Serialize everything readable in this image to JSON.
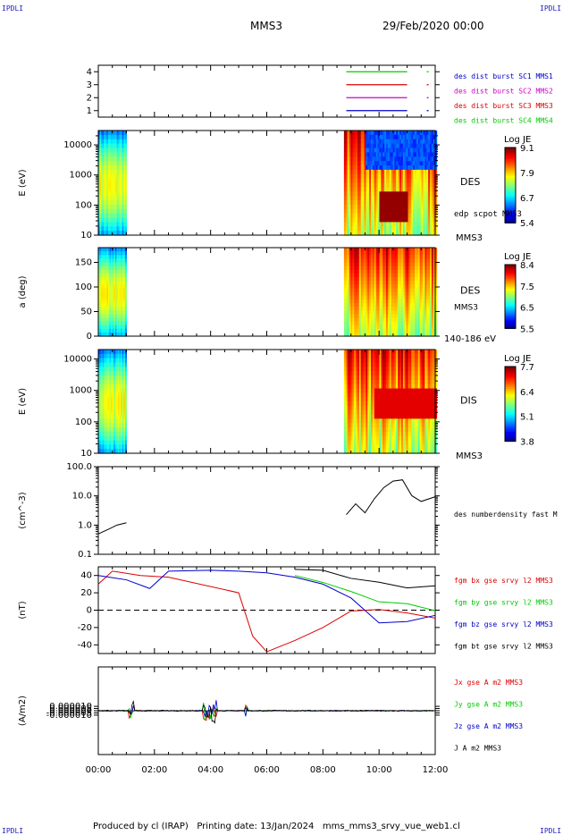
{
  "header": {
    "corner_label": "IPDLI",
    "spacecraft": "MMS3",
    "date": "29/Feb/2020 00:00"
  },
  "footer": {
    "text": "Produced by cl (IRAP)   Printing date: 13/Jan/2024   mms_mms3_srvy_vue_web1.cl"
  },
  "colors": {
    "sc1": "#0000cc",
    "sc2": "#cc00cc",
    "sc3": "#dd0000",
    "sc4": "#00cc00",
    "bx": "#dd0000",
    "by": "#00cc00",
    "bz": "#0000cc",
    "bt": "#000000"
  },
  "chart_data": [
    {
      "type": "line",
      "panel": "burst",
      "ylim": [
        0.5,
        4.5
      ],
      "yticks": [
        "1",
        "2",
        "3",
        "4"
      ],
      "series": [
        {
          "name": "des dist burst SC1 MMS1",
          "level": 1,
          "x": [
            [
              "08:50",
              "11:00"
            ]
          ]
        },
        {
          "name": "des dist burst SC2 MMS2",
          "level": 2,
          "x": [
            [
              "08:50",
              "11:00"
            ]
          ]
        },
        {
          "name": "des dist burst SC3 MMS3",
          "level": 3,
          "x": [
            [
              "08:50",
              "11:00"
            ]
          ]
        },
        {
          "name": "des dist burst SC4 MMS4",
          "level": 4,
          "x": [
            [
              "08:50",
              "11:00"
            ]
          ]
        }
      ]
    },
    {
      "type": "heatmap",
      "panel": "des_energy",
      "log_y": true,
      "ylabel": "E (eV)",
      "ylim": [
        10,
        30000
      ],
      "yticks": [
        "10",
        "100",
        "1000",
        "10000"
      ],
      "label": "DES",
      "sublabel": "edp scpot MMS3",
      "bottom_label": "MMS3",
      "colorbar": {
        "title": "Log JE",
        "ticks": [
          "9.1",
          "7.9",
          "6.7",
          "5.4"
        ]
      },
      "data_intervals": [
        [
          "00:00",
          "01:00"
        ],
        [
          "08:45",
          "12:00"
        ]
      ],
      "enhanced_interval": [
        "10:00",
        "11:00"
      ]
    },
    {
      "type": "heatmap",
      "panel": "des_pitch",
      "ylabel": "a (deg)",
      "ylim": [
        0,
        180
      ],
      "yticks": [
        "0",
        "50",
        "100",
        "150"
      ],
      "label": "DES",
      "sublabel": "MMS3",
      "bottom_label": "140-186 eV",
      "colorbar": {
        "title": "Log JE",
        "ticks": [
          "8.4",
          "7.5",
          "6.5",
          "5.5"
        ]
      },
      "data_intervals": [
        [
          "00:00",
          "01:00"
        ],
        [
          "08:45",
          "12:00"
        ]
      ]
    },
    {
      "type": "heatmap",
      "panel": "dis_energy",
      "log_y": true,
      "ylabel": "E (eV)",
      "ylim": [
        10,
        20000
      ],
      "yticks": [
        "10",
        "100",
        "1000",
        "10000"
      ],
      "label": "DIS",
      "bottom_label": "MMS3",
      "colorbar": {
        "title": "Log JE",
        "ticks": [
          "7.7",
          "6.4",
          "5.1",
          "3.8"
        ]
      },
      "data_intervals": [
        [
          "00:00",
          "01:00"
        ],
        [
          "08:45",
          "12:00"
        ]
      ]
    },
    {
      "type": "line",
      "panel": "density",
      "log_y": true,
      "ylabel": "(cm^-3)",
      "ylim": [
        0.1,
        100
      ],
      "yticks": [
        "0.1",
        "1.0",
        "10.0",
        "100.0"
      ],
      "series": [
        {
          "name": "des numberdensity fast M",
          "color": "#000000",
          "x": [
            "00:00",
            "00:20",
            "00:40",
            "01:00",
            "08:50",
            "09:10",
            "09:30",
            "09:50",
            "10:10",
            "10:30",
            "10:50",
            "11:10",
            "11:30",
            "12:00"
          ],
          "y": [
            0.5,
            0.7,
            1.0,
            1.2,
            2.0,
            5.0,
            3.0,
            8.0,
            20,
            30,
            40,
            15,
            10,
            9
          ]
        }
      ]
    },
    {
      "type": "line",
      "panel": "fgm",
      "ylabel": "(nT)",
      "ylim": [
        -50,
        50
      ],
      "yticks": [
        "-40",
        "-20",
        "0",
        "20",
        "40"
      ],
      "series": [
        {
          "name": "fgm bx gse srvy l2 MMS3",
          "color": "#dd0000",
          "x": [
            "00:00",
            "00:30",
            "01:30",
            "02:30",
            "05:00",
            "05:30",
            "06:00",
            "07:00",
            "08:00",
            "09:00",
            "10:00",
            "11:00",
            "12:00"
          ],
          "y": [
            30,
            45,
            40,
            38,
            20,
            -30,
            -48,
            -35,
            -20,
            -5,
            -5,
            -5,
            -8
          ]
        },
        {
          "name": "fgm by gse srvy l2 MMS3",
          "color": "#00cc00",
          "x": [
            "07:00",
            "08:00",
            "09:00",
            "10:00",
            "11:00",
            "12:00"
          ],
          "y": [
            40,
            32,
            20,
            15,
            10,
            5
          ]
        },
        {
          "name": "fgm bz gse srvy l2 MMS3",
          "color": "#0000cc",
          "x": [
            "00:00",
            "01:00",
            "01:50",
            "02:30",
            "04:00",
            "05:00",
            "06:00",
            "07:00",
            "08:00",
            "09:00",
            "10:00",
            "11:00",
            "12:00"
          ],
          "y": [
            40,
            35,
            25,
            45,
            46,
            45,
            43,
            38,
            30,
            10,
            -10,
            -10,
            -8
          ]
        },
        {
          "name": "fgm bt gse srvy l2 MMS3",
          "color": "#000000",
          "x": [
            "07:00",
            "08:00",
            "09:00",
            "10:00",
            "11:00",
            "12:00"
          ],
          "y": [
            47,
            46,
            40,
            35,
            30,
            25
          ]
        }
      ]
    },
    {
      "type": "line",
      "panel": "current",
      "ylabel": "(A/m2)",
      "ylim": [
        -0.0001,
        0.0001
      ],
      "yticks": [
        "-0.000010",
        "-0.000005",
        "0.000000",
        "0.000005",
        "0.000010"
      ],
      "series": [
        {
          "name": "Jx gse A m2 MMS3",
          "color": "#dd0000"
        },
        {
          "name": "Jy gse A m2 MMS3",
          "color": "#00cc00"
        },
        {
          "name": "Jz gse A m2 MMS3",
          "color": "#0000cc"
        },
        {
          "name": "J A m2 MMS3",
          "color": "#000000"
        }
      ]
    }
  ],
  "xaxis": {
    "ticks": [
      "00:00",
      "02:00",
      "04:00",
      "06:00",
      "08:00",
      "10:00",
      "12:00"
    ]
  }
}
